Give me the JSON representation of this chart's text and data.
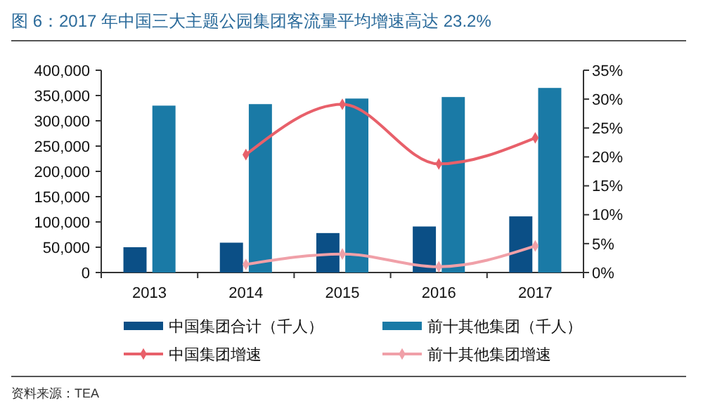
{
  "chart_data": {
    "type": "bar",
    "title": "图 6：2017 年中国三大主题公园集团客流量平均增速高达 23.2%",
    "categories": [
      "2013",
      "2014",
      "2015",
      "2016",
      "2017"
    ],
    "series": [
      {
        "name": "中国集团合计（千人）",
        "color": "#0b4f86",
        "values": [
          50000,
          59000,
          78000,
          91000,
          111000
        ]
      },
      {
        "name": "前十其他集团（千人）",
        "color": "#1a7aa6",
        "values": [
          330000,
          333000,
          344000,
          347000,
          365000
        ]
      },
      {
        "name": "中国集团增速",
        "type": "line",
        "axis": "y2",
        "color": "#e8606a",
        "values": [
          null,
          20.4,
          29.1,
          18.8,
          23.3
        ]
      },
      {
        "name": "前十其他集团增速",
        "type": "line",
        "axis": "y2",
        "color": "#f0a0a8",
        "values": [
          null,
          1.4,
          3.2,
          1.0,
          4.6
        ]
      }
    ],
    "ylim": [
      0,
      400000
    ],
    "yticks": [
      {
        "value": 0,
        "label": "0"
      },
      {
        "value": 50000,
        "label": "50,000"
      },
      {
        "value": 100000,
        "label": "100,000"
      },
      {
        "value": 150000,
        "label": "150,000"
      },
      {
        "value": 200000,
        "label": "200,000"
      },
      {
        "value": 250000,
        "label": "250,000"
      },
      {
        "value": 300000,
        "label": "300,000"
      },
      {
        "value": 350000,
        "label": "350,000"
      },
      {
        "value": 400000,
        "label": "400,000"
      }
    ],
    "y2lim": [
      0,
      35
    ],
    "y2ticks": [
      {
        "value": 0,
        "label": "0%"
      },
      {
        "value": 5,
        "label": "5%"
      },
      {
        "value": 10,
        "label": "10%"
      },
      {
        "value": 15,
        "label": "15%"
      },
      {
        "value": 20,
        "label": "20%"
      },
      {
        "value": 25,
        "label": "25%"
      },
      {
        "value": 30,
        "label": "30%"
      },
      {
        "value": 35,
        "label": "35%"
      }
    ],
    "marker": "diamond",
    "legend": "bottom",
    "grid": false,
    "annotations": [
      "资料来源：TEA"
    ]
  }
}
